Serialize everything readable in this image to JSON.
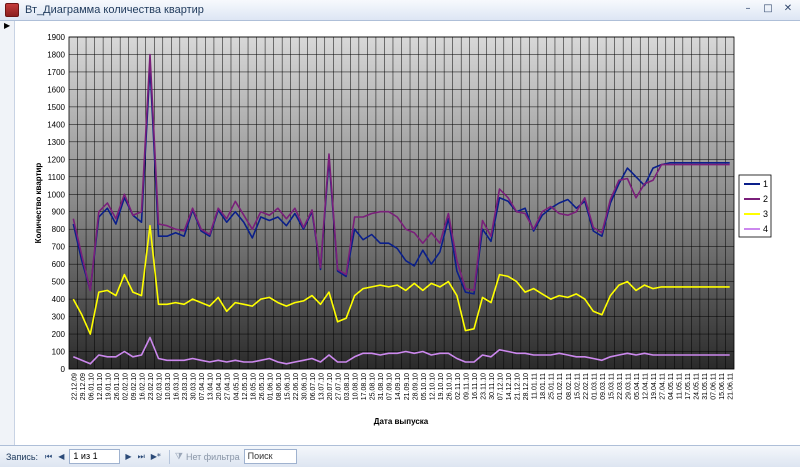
{
  "window": {
    "title": "Вт_Диаграмма количества квартир",
    "controls": [
      "–",
      "□",
      "✕"
    ]
  },
  "statusbar": {
    "record_label": "Запись:",
    "nav_first": "⏮",
    "nav_prev": "◀",
    "record_value": "1 из 1",
    "nav_next": "▶",
    "nav_last": "⏭",
    "nav_new": "▶*",
    "filter_label": "Нет фильтра",
    "search_label": "Поиск"
  },
  "chart_data": {
    "type": "line",
    "xlabel": "Дата выпуска",
    "ylabel": "Количество квартир",
    "ylim": [
      0,
      1900
    ],
    "yticks": [
      0,
      100,
      200,
      300,
      400,
      500,
      600,
      700,
      800,
      900,
      1000,
      1100,
      1200,
      1300,
      1400,
      1500,
      1600,
      1700,
      1800,
      1900
    ],
    "grid": true,
    "legend_position": "right",
    "categories": [
      "22.12.09",
      "29.12.09",
      "06.01.10",
      "12.01.10",
      "19.01.10",
      "26.01.10",
      "02.02.10",
      "09.02.10",
      "16.02.10",
      "23.02.10",
      "02.03.10",
      "10.03.10",
      "16.03.10",
      "23.03.10",
      "30.03.10",
      "07.04.10",
      "13.04.10",
      "20.04.10",
      "27.04.10",
      "04.05.10",
      "12.05.10",
      "18.05.10",
      "26.05.10",
      "01.06.10",
      "08.06.10",
      "15.06.10",
      "22.06.10",
      "30.06.10",
      "06.07.10",
      "13.07.10",
      "20.07.10",
      "27.07.10",
      "03.08.10",
      "10.08.10",
      "17.08.10",
      "25.08.10",
      "31.08.10",
      "07.09.10",
      "14.09.10",
      "21.09.10",
      "28.09.10",
      "05.10.10",
      "12.10.10",
      "19.10.10",
      "26.10.10",
      "02.11.10",
      "09.11.10",
      "16.11.10",
      "23.11.10",
      "30.11.10",
      "07.12.10",
      "14.12.10",
      "21.12.10",
      "28.12.10",
      "11.01.11",
      "18.01.11",
      "25.01.11",
      "01.02.11",
      "08.02.11",
      "15.02.11",
      "22.02.11",
      "01.03.11",
      "09.03.11",
      "15.03.11",
      "22.03.11",
      "29.03.11",
      "05.04.11",
      "12.04.11",
      "19.04.11",
      "27.04.11",
      "04.05.11",
      "11.05.11",
      "17.05.11",
      "24.05.11",
      "31.05.11",
      "07.06.11",
      "15.06.11",
      "21.06.11"
    ],
    "series": [
      {
        "name": "1",
        "color": "#0a1f8a",
        "values": [
          830,
          620,
          450,
          870,
          920,
          830,
          980,
          880,
          840,
          1730,
          760,
          760,
          780,
          760,
          910,
          790,
          760,
          910,
          840,
          900,
          840,
          750,
          870,
          850,
          870,
          820,
          890,
          800,
          900,
          570,
          1200,
          560,
          530,
          800,
          740,
          770,
          720,
          720,
          690,
          620,
          590,
          680,
          600,
          670,
          860,
          560,
          440,
          430,
          800,
          730,
          980,
          960,
          900,
          920,
          790,
          880,
          920,
          950,
          970,
          920,
          960,
          790,
          760,
          950,
          1060,
          1150,
          1100,
          1050,
          1150,
          1170,
          1180,
          1180,
          1180,
          1180,
          1180,
          1180,
          1180,
          1180
        ],
        "visible_points": 70
      },
      {
        "name": "2",
        "color": "#7a1f7a",
        "values": [
          860,
          650,
          450,
          900,
          950,
          860,
          1000,
          880,
          900,
          1800,
          830,
          820,
          800,
          790,
          920,
          800,
          770,
          920,
          860,
          960,
          880,
          800,
          900,
          880,
          920,
          860,
          920,
          810,
          910,
          580,
          1230,
          570,
          540,
          870,
          870,
          890,
          900,
          900,
          870,
          800,
          780,
          720,
          780,
          720,
          890,
          620,
          460,
          450,
          850,
          760,
          1030,
          980,
          900,
          890,
          800,
          900,
          930,
          890,
          880,
          900,
          980,
          810,
          780,
          970,
          1080,
          1090,
          980,
          1060,
          1080,
          1170,
          1170,
          1170,
          1170,
          1170,
          1170,
          1170,
          1170,
          1170
        ],
        "visible_points": 70
      },
      {
        "name": "3",
        "color": "#ffff00",
        "values": [
          400,
          310,
          200,
          440,
          450,
          420,
          540,
          440,
          420,
          820,
          370,
          370,
          380,
          370,
          400,
          380,
          360,
          410,
          330,
          380,
          370,
          360,
          400,
          410,
          380,
          360,
          380,
          390,
          420,
          370,
          440,
          270,
          290,
          420,
          460,
          470,
          480,
          470,
          480,
          450,
          490,
          450,
          490,
          470,
          500,
          420,
          220,
          230,
          410,
          380,
          540,
          530,
          500,
          440,
          460,
          430,
          400,
          420,
          410,
          430,
          400,
          330,
          310,
          420,
          480,
          500,
          450,
          480,
          460,
          470,
          470,
          470,
          470,
          470,
          470,
          470,
          470,
          470
        ],
        "visible_points": 70
      },
      {
        "name": "4",
        "color": "#cc88ee",
        "values": [
          70,
          50,
          30,
          80,
          70,
          70,
          100,
          70,
          80,
          180,
          60,
          50,
          50,
          50,
          60,
          50,
          40,
          50,
          40,
          50,
          40,
          40,
          50,
          60,
          40,
          30,
          40,
          50,
          60,
          40,
          80,
          40,
          40,
          70,
          90,
          90,
          80,
          90,
          90,
          100,
          90,
          100,
          80,
          90,
          90,
          60,
          40,
          40,
          80,
          70,
          110,
          100,
          90,
          90,
          80,
          80,
          80,
          90,
          80,
          70,
          70,
          60,
          50,
          70,
          80,
          90,
          80,
          90,
          80,
          80,
          80,
          80,
          80,
          80,
          80,
          80,
          80,
          80
        ],
        "visible_points": 70
      }
    ]
  }
}
